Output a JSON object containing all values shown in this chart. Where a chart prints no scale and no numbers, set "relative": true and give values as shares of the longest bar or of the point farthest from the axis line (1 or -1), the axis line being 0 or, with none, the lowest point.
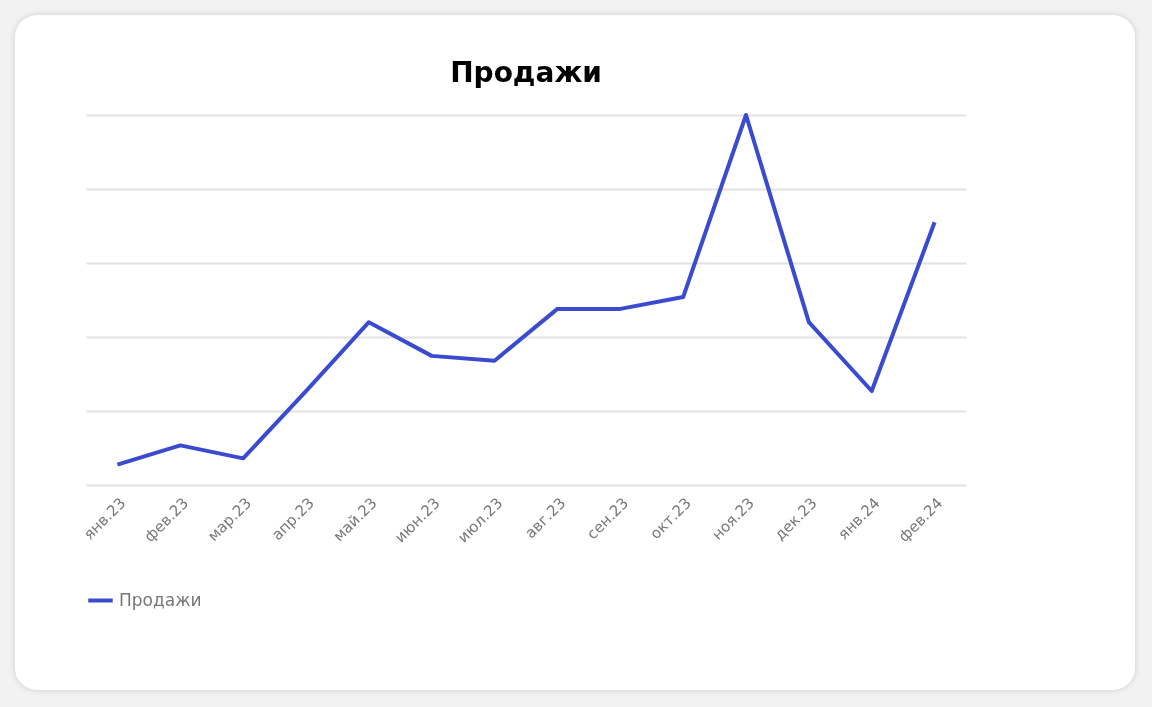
{
  "chart_data": {
    "type": "line",
    "title": "Продажи",
    "relative": true,
    "categories": [
      "янв.23",
      "фев.23",
      "мар.23",
      "апр.23",
      "май.23",
      "июн.23",
      "июл.23",
      "авг.23",
      "сен.23",
      "окт.23",
      "ноя.23",
      "дек.23",
      "янв.24",
      "фев.24"
    ],
    "series": [
      {
        "name": "Продажи",
        "color": "#3b4bcf",
        "values": [
          0.055,
          0.107,
          0.072,
          0.254,
          0.44,
          0.349,
          0.336,
          0.476,
          0.476,
          0.508,
          1,
          0.44,
          0.254,
          0.71
        ]
      }
    ],
    "grid": "y",
    "legend": "bottom",
    "marker": "none",
    "line_style": "solid"
  }
}
